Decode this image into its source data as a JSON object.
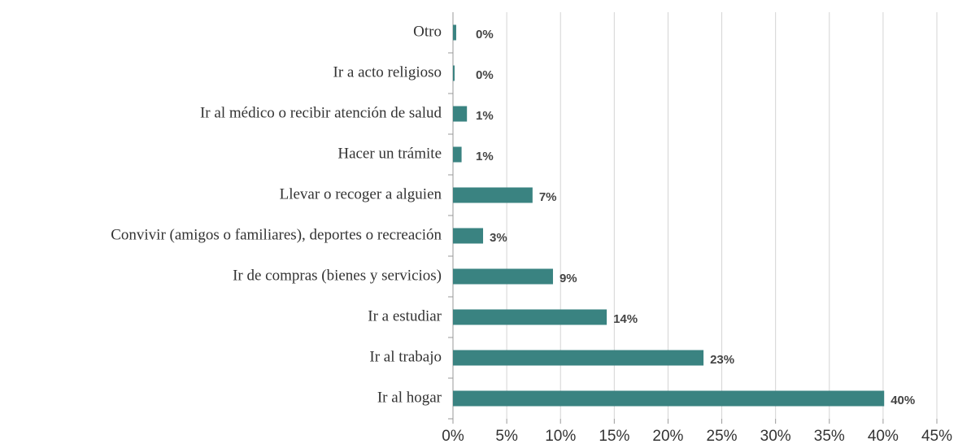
{
  "chart_data": {
    "type": "bar",
    "orientation": "horizontal",
    "categories": [
      "Otro",
      "Ir a acto religioso",
      "Ir al médico o recibir atención de salud",
      "Hacer un trámite",
      "Llevar o recoger a alguien",
      "Convivir (amigos o familiares), deportes o recreación",
      "Ir de compras (bienes y servicios)",
      "Ir a estudiar",
      "Ir al trabajo",
      "Ir al hogar"
    ],
    "values": [
      0.3,
      0.15,
      1.3,
      0.8,
      7.4,
      2.8,
      9.3,
      14.3,
      23.3,
      40.1
    ],
    "value_labels": [
      "0%",
      "0%",
      "1%",
      "1%",
      "7%",
      "3%",
      "9%",
      "14%",
      "23%",
      "40%"
    ],
    "color": "#3a8381",
    "xlim": [
      0,
      45
    ],
    "xticks": [
      {
        "value": 0,
        "label": "0%"
      },
      {
        "value": 5,
        "label": "5%"
      },
      {
        "value": 10,
        "label": "10%"
      },
      {
        "value": 15,
        "label": "15%"
      },
      {
        "value": 20,
        "label": "20%"
      },
      {
        "value": 25,
        "label": "25%"
      },
      {
        "value": 30,
        "label": "30%"
      },
      {
        "value": 35,
        "label": "35%"
      },
      {
        "value": 40,
        "label": "40%"
      },
      {
        "value": 45,
        "label": "45%"
      }
    ],
    "grid": true
  }
}
